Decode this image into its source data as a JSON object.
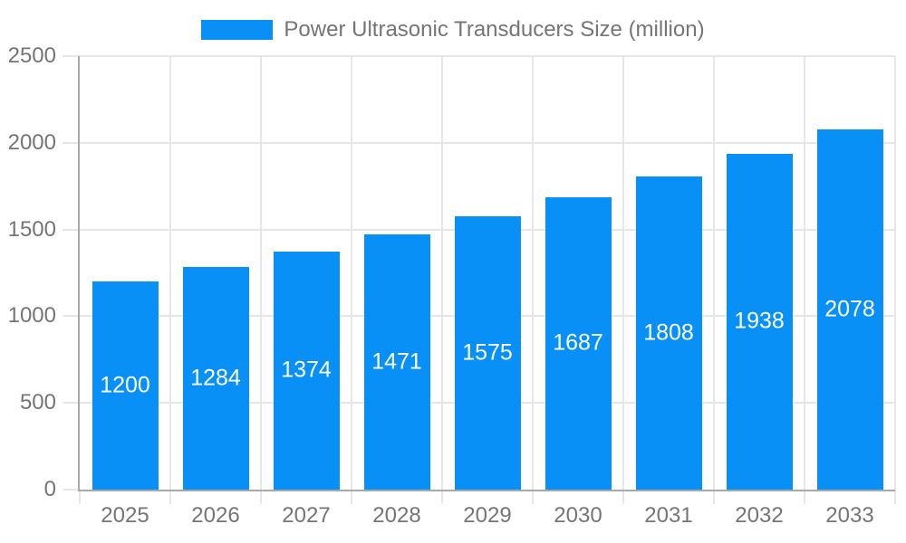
{
  "chart_data": {
    "type": "bar",
    "title": "",
    "legend": "Power Ultrasonic Transducers Size (million)",
    "legend_position": "top",
    "categories": [
      "2025",
      "2026",
      "2027",
      "2028",
      "2029",
      "2030",
      "2031",
      "2032",
      "2033"
    ],
    "series": [
      {
        "name": "Power Ultrasonic Transducers Size (million)",
        "values": [
          1200,
          1284,
          1374,
          1471,
          1575,
          1687,
          1808,
          1938,
          2078
        ]
      }
    ],
    "xlabel": "",
    "ylabel": "",
    "ylim": [
      0,
      2500
    ],
    "yticks": [
      0,
      500,
      1000,
      1500,
      2000,
      2500
    ],
    "grid": true,
    "value_labels": "inside-center",
    "colors": {
      "bar": "#0890f7",
      "value_label": "#ffffff",
      "axis_text": "#757575",
      "grid_line": "#e6e6e6",
      "axis_line": "#a8a8a8",
      "background": "#ffffff"
    }
  }
}
